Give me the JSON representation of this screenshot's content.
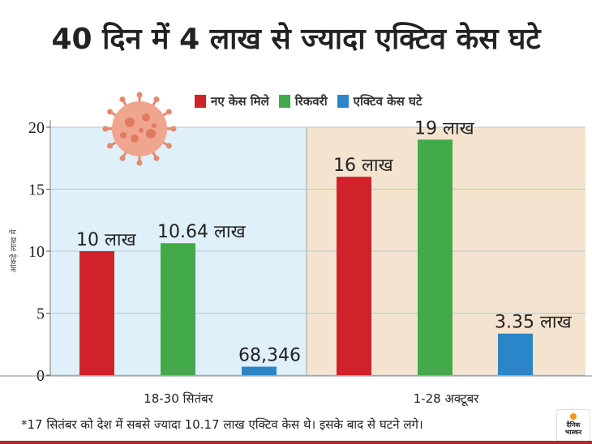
{
  "title": "40 दिन में 4 लाख से ज्यादा एक्टिव केस घटे",
  "footnote": "*17 सितंबर को देश में सबसे ज्यादा 10.17 लाख एक्टिव केस थे। इसके बाद से घटने लगे।",
  "logo_text": [
    "दैनिक",
    "भास्कर"
  ],
  "chart_data": {
    "type": "bar",
    "title": "40 दिन में 4 लाख से ज्यादा एक्टिव केस घटे",
    "ylabel": "आंकड़े लाख में",
    "xlabel": "",
    "ylim": [
      0,
      20
    ],
    "yticks": [
      "0",
      "5",
      "10",
      "15",
      "20"
    ],
    "grid": true,
    "legend_position": "top",
    "categories": [
      "18-30 सितंबर",
      "1-28 अक्टूबर"
    ],
    "category_colors": [
      "#dff0fb",
      "#f4e4cf"
    ],
    "series": [
      {
        "name": "नए केस मिले",
        "color": "#d0222b",
        "values": [
          10,
          16
        ],
        "labels": [
          "10 लाख",
          "16 लाख"
        ]
      },
      {
        "name": "रिकवरी",
        "color": "#42aa4a",
        "values": [
          10.64,
          19
        ],
        "labels": [
          "10.64 लाख",
          "19 लाख"
        ]
      },
      {
        "name": "एक्टिव केस घटे",
        "color": "#2a86c8",
        "values": [
          0.68346,
          3.35
        ],
        "labels": [
          "68,346",
          "3.35 लाख"
        ]
      }
    ]
  }
}
